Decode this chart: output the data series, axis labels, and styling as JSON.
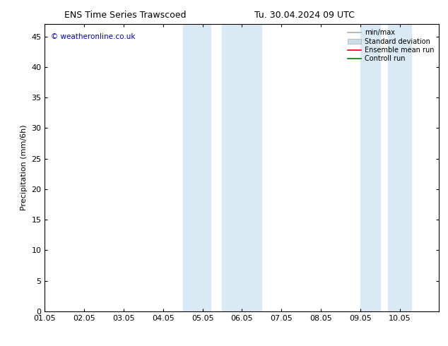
{
  "title_left": "ENS Time Series Trawscoed",
  "title_right": "Tu. 30.04.2024 09 UTC",
  "ylabel": "Precipitation (mm/6h)",
  "xlabel_ticks": [
    "01.05",
    "02.05",
    "03.05",
    "04.05",
    "05.05",
    "06.05",
    "07.05",
    "08.05",
    "09.05",
    "10.05"
  ],
  "xlim": [
    0,
    10
  ],
  "ylim": [
    0,
    47
  ],
  "yticks": [
    0,
    5,
    10,
    15,
    20,
    25,
    30,
    35,
    40,
    45
  ],
  "shaded_bands": [
    {
      "x_start": 3.5,
      "x_end": 4.2,
      "color": "#daeaf5"
    },
    {
      "x_start": 4.5,
      "x_end": 5.5,
      "color": "#daeaf5"
    },
    {
      "x_start": 8.0,
      "x_end": 8.5,
      "color": "#daeaf5"
    },
    {
      "x_start": 8.7,
      "x_end": 9.3,
      "color": "#daeaf5"
    }
  ],
  "copyright_text": "© weatheronline.co.uk",
  "copyright_color": "#0000cc",
  "legend_entries": [
    {
      "label": "min/max",
      "color": "#aaaaaa",
      "lw": 1.2,
      "type": "line"
    },
    {
      "label": "Standard deviation",
      "color": "#ccdde8",
      "lw": 6,
      "type": "patch"
    },
    {
      "label": "Ensemble mean run",
      "color": "#ff0000",
      "lw": 1.2,
      "type": "line"
    },
    {
      "label": "Controll run",
      "color": "#008000",
      "lw": 1.2,
      "type": "line"
    }
  ],
  "bg_color": "#ffffff",
  "plot_bg_color": "#ffffff",
  "border_color": "#000000",
  "title_fontsize": 9,
  "tick_fontsize": 8,
  "ylabel_fontsize": 8,
  "legend_fontsize": 7
}
